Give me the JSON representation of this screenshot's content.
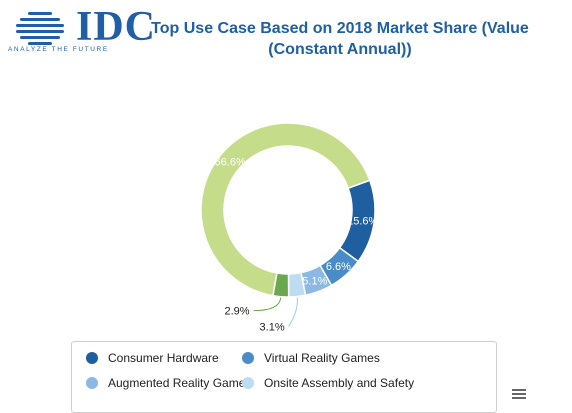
{
  "logo": {
    "text": "IDC",
    "tagline": "ANALYZE THE FUTURE",
    "icon": "globe-icon",
    "color": "#1f5fa8"
  },
  "title_line1": "Top Use Case Based on 2018 Market Share (Value",
  "title_line2": "(Constant Annual))",
  "chart_data": {
    "type": "pie",
    "subtype": "donut",
    "title": "Top Use Case Based on 2018 Market Share (Value (Constant Annual))",
    "slices": [
      {
        "name": "Consumer Hardware",
        "value": 15.6,
        "label": "15.6%",
        "color": "#1f5fa0"
      },
      {
        "name": "Virtual Reality Games",
        "value": 6.6,
        "label": "6.6%",
        "color": "#4a8cc8"
      },
      {
        "name": "Augmented Reality Games",
        "value": 5.1,
        "label": "5.1%",
        "color": "#8bb9e3"
      },
      {
        "name": "Onsite Assembly and Safety",
        "value": 3.1,
        "label": "3.1%",
        "color": "#bddcf2"
      },
      {
        "name": "",
        "value": 2.9,
        "label": "2.9%",
        "color": "#6aa84f"
      },
      {
        "name": "",
        "value": 66.6,
        "label": "66.6%",
        "color": "#c5dd8a"
      }
    ],
    "legend": {
      "placement": "bottom",
      "entries": [
        "Consumer Hardware",
        "Virtual Reality Games",
        "Augmented Reality Games",
        "Onsite Assembly and Safety"
      ]
    }
  },
  "legend_menu_icon": "hamburger-menu-icon"
}
